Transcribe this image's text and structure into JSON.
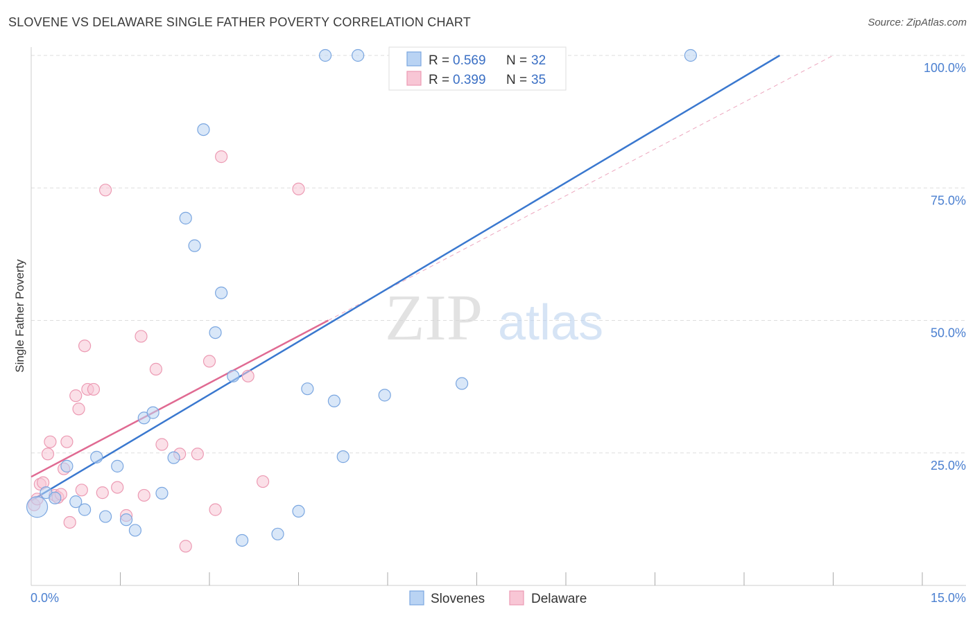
{
  "header": {
    "title": "SLOVENE VS DELAWARE SINGLE FATHER POVERTY CORRELATION CHART",
    "source": "Source: ZipAtlas.com"
  },
  "watermark": {
    "zip": "ZIP",
    "atlas": "atlas"
  },
  "legend": {
    "r_label": "R =",
    "n_label": "N =",
    "rows": [
      {
        "r": "0.569",
        "n": "32"
      },
      {
        "r": "0.399",
        "n": "35"
      }
    ]
  },
  "colors": {
    "slovenes_fill": "#b9d3f3",
    "slovenes_stroke": "#7aa6e0",
    "slovenes_line": "#3a78cf",
    "delaware_fill": "#f8c6d5",
    "delaware_stroke": "#ec9ab3",
    "delaware_line": "#e06a92",
    "tick_label": "#4a7fd0",
    "grid": "#dddddd"
  },
  "chart_data": {
    "type": "scatter",
    "title": "SLOVENE VS DELAWARE SINGLE FATHER POVERTY CORRELATION CHART",
    "xlabel": "",
    "ylabel": "Single Father Poverty",
    "xlim": [
      0,
      15
    ],
    "ylim": [
      0,
      100
    ],
    "x_tick_labels": [
      "0.0%",
      "15.0%"
    ],
    "y_tick_labels": [
      "25.0%",
      "50.0%",
      "75.0%",
      "100.0%"
    ],
    "y_ticks": [
      25,
      50,
      75,
      100
    ],
    "x_minor_ticks": [
      1.5,
      3.0,
      4.5,
      6.0,
      7.5,
      9.0,
      10.5,
      12.0,
      13.5,
      15.0
    ],
    "grid": true,
    "legend_position": "top-center",
    "series": [
      {
        "name": "Slovenes",
        "r": 0.569,
        "n": 32,
        "points": [
          [
            0.1,
            14.8
          ],
          [
            0.25,
            17.5
          ],
          [
            0.4,
            16.5
          ],
          [
            0.6,
            22.5
          ],
          [
            0.75,
            15.8
          ],
          [
            0.9,
            14.3
          ],
          [
            1.1,
            24.2
          ],
          [
            1.25,
            13.0
          ],
          [
            1.45,
            22.5
          ],
          [
            1.6,
            12.4
          ],
          [
            1.75,
            10.4
          ],
          [
            1.9,
            31.6
          ],
          [
            2.05,
            32.6
          ],
          [
            2.2,
            17.4
          ],
          [
            2.4,
            24.1
          ],
          [
            2.6,
            69.3
          ],
          [
            2.75,
            64.1
          ],
          [
            2.9,
            86.0
          ],
          [
            3.1,
            47.7
          ],
          [
            3.2,
            55.2
          ],
          [
            3.4,
            39.5
          ],
          [
            3.55,
            8.5
          ],
          [
            4.15,
            9.7
          ],
          [
            4.5,
            14.0
          ],
          [
            4.65,
            37.1
          ],
          [
            4.95,
            100.0
          ],
          [
            5.1,
            34.8
          ],
          [
            5.25,
            24.3
          ],
          [
            5.5,
            100.0
          ],
          [
            5.95,
            35.9
          ],
          [
            7.25,
            38.1
          ],
          [
            11.1,
            100.0
          ]
        ],
        "trend_line": {
          "x": [
            0,
            12.6
          ],
          "y": [
            16.0,
            100.0
          ]
        }
      },
      {
        "name": "Delaware",
        "r": 0.399,
        "n": 35,
        "points": [
          [
            0.05,
            15.2
          ],
          [
            0.1,
            16.3
          ],
          [
            0.15,
            19.1
          ],
          [
            0.2,
            19.4
          ],
          [
            0.28,
            24.8
          ],
          [
            0.32,
            27.1
          ],
          [
            0.4,
            17.0
          ],
          [
            0.45,
            16.6
          ],
          [
            0.5,
            17.2
          ],
          [
            0.55,
            22.0
          ],
          [
            0.6,
            27.1
          ],
          [
            0.65,
            11.9
          ],
          [
            0.75,
            35.8
          ],
          [
            0.8,
            33.3
          ],
          [
            0.85,
            18.0
          ],
          [
            0.9,
            45.2
          ],
          [
            0.95,
            37.0
          ],
          [
            1.05,
            37.0
          ],
          [
            1.2,
            17.5
          ],
          [
            1.25,
            74.6
          ],
          [
            1.45,
            18.5
          ],
          [
            1.6,
            13.2
          ],
          [
            1.85,
            47.0
          ],
          [
            1.9,
            17.0
          ],
          [
            2.1,
            40.8
          ],
          [
            2.2,
            26.6
          ],
          [
            2.5,
            24.8
          ],
          [
            2.6,
            7.4
          ],
          [
            2.8,
            24.8
          ],
          [
            3.0,
            42.3
          ],
          [
            3.1,
            14.3
          ],
          [
            3.2,
            80.9
          ],
          [
            3.65,
            39.5
          ],
          [
            3.9,
            19.6
          ],
          [
            4.5,
            74.8
          ]
        ],
        "trend_line": {
          "x": [
            0,
            5.0
          ],
          "y": [
            20.5,
            50.0
          ]
        },
        "trend_extension": {
          "x": [
            5.0,
            13.5
          ],
          "y": [
            50.0,
            100.0
          ]
        }
      }
    ]
  },
  "bottom_legend": {
    "items": [
      {
        "label": "Slovenes"
      },
      {
        "label": "Delaware"
      }
    ]
  }
}
